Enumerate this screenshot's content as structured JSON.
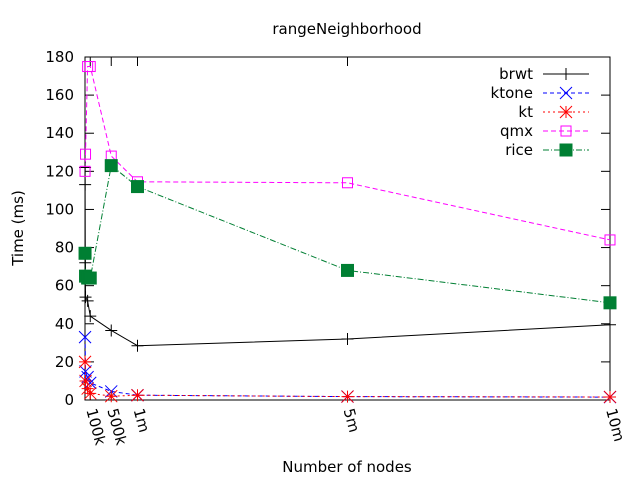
{
  "chart_data": {
    "type": "line",
    "title": "rangeNeighborhood",
    "xlabel": "Number of nodes",
    "ylabel": "Time (ms)",
    "xlim": [
      0,
      10000000
    ],
    "ylim": [
      0,
      180
    ],
    "yticks": [
      0,
      20,
      40,
      60,
      80,
      100,
      120,
      140,
      160,
      180
    ],
    "xticks": [
      {
        "value": 100000,
        "label": "100k"
      },
      {
        "value": 500000,
        "label": "500k"
      },
      {
        "value": 1000000,
        "label": "1m"
      },
      {
        "value": 5000000,
        "label": "5m"
      },
      {
        "value": 10000000,
        "label": "10m"
      }
    ],
    "grid": false,
    "legend_position": "top-right",
    "series": [
      {
        "name": "brwt",
        "color": "#000000",
        "marker": "plus",
        "dash": "",
        "x": [
          1000,
          2000,
          5000,
          10000,
          50000,
          100000,
          500000,
          1000000,
          5000000,
          10000000
        ],
        "y": [
          122,
          113,
          72,
          54,
          52,
          44,
          36.5,
          28.5,
          32,
          39.5
        ]
      },
      {
        "name": "ktone",
        "color": "#0000ff",
        "marker": "x",
        "dash": "4,3",
        "x": [
          1000,
          10000,
          50000,
          100000,
          500000,
          1000000,
          5000000,
          10000000
        ],
        "y": [
          33,
          15,
          12,
          9,
          4.5,
          2.5,
          1.8,
          1.5
        ]
      },
      {
        "name": "kt",
        "color": "#ff0000",
        "marker": "star",
        "dash": "2,3",
        "x": [
          1000,
          10000,
          50000,
          100000,
          500000,
          1000000,
          5000000,
          10000000
        ],
        "y": [
          20,
          10,
          6,
          3.5,
          2,
          2.5,
          1.8,
          1.6
        ]
      },
      {
        "name": "qmx",
        "color": "#ff00ff",
        "marker": "square-open",
        "dash": "5,3",
        "x": [
          1000,
          10000,
          50000,
          100000,
          500000,
          1000000,
          5000000,
          10000000
        ],
        "y": [
          120,
          129,
          175,
          175,
          128,
          114.5,
          114,
          84
        ]
      },
      {
        "name": "rice",
        "color": "#007f33",
        "marker": "square-filled",
        "dash": "6,2,1,2",
        "x": [
          1000,
          10000,
          50000,
          100000,
          500000,
          1000000,
          5000000,
          10000000
        ],
        "y": [
          77,
          65,
          64,
          64,
          123,
          112,
          68,
          51
        ]
      }
    ]
  }
}
